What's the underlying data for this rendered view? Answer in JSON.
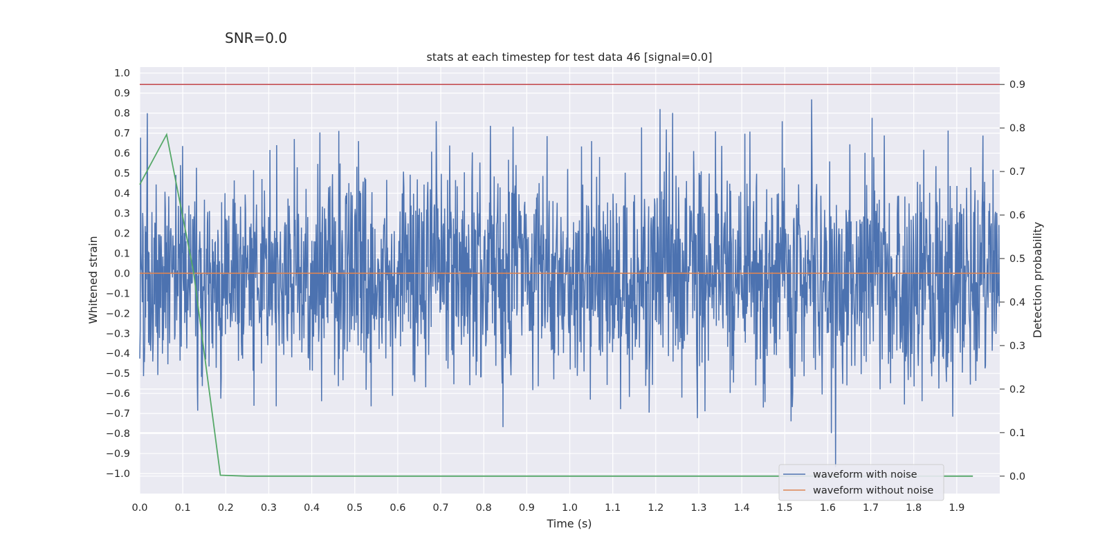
{
  "suptitle": "SNR=0.0",
  "chart_data": {
    "type": "line",
    "title": "stats at each timestep for test data 46 [signal=0.0]",
    "xlabel": "Time (s)",
    "ylabel": "Whitened strain",
    "y2label": "Detection probability",
    "xlim": [
      0.0,
      2.0
    ],
    "ylim": [
      -1.1,
      1.03
    ],
    "y2lim": [
      -0.04,
      0.94
    ],
    "xticks": [
      "0.0",
      "0.1",
      "0.2",
      "0.3",
      "0.4",
      "0.5",
      "0.6",
      "0.7",
      "0.8",
      "0.9",
      "1.0",
      "1.1",
      "1.2",
      "1.3",
      "1.4",
      "1.5",
      "1.6",
      "1.7",
      "1.8",
      "1.9"
    ],
    "yticks": [
      "1.0",
      "0.9",
      "0.8",
      "0.7",
      "0.6",
      "0.5",
      "0.4",
      "0.3",
      "0.2",
      "0.1",
      "0.0",
      "−0.1",
      "−0.2",
      "−0.3",
      "−0.4",
      "−0.5",
      "−0.6",
      "−0.7",
      "−0.8",
      "−0.9",
      "−1.0"
    ],
    "y2ticks": [
      "0.9",
      "0.8",
      "0.7",
      "0.6",
      "0.5",
      "0.4",
      "0.3",
      "0.2",
      "0.1",
      "0.0"
    ],
    "grid": true,
    "legend_position": "lower-right",
    "threshold": {
      "value": 0.9,
      "axis": "right",
      "color": "#c44e52"
    },
    "series": [
      {
        "name": "waveform with noise",
        "axis": "left",
        "color": "#4c72b0",
        "note_samples": "approximate noise trace; 2048 samples over 0–2 s, range about −1.0 to 0.93",
        "sample_count": 2048,
        "amplitude_range": [
          -1.0,
          0.93
        ]
      },
      {
        "name": "waveform without noise",
        "axis": "left",
        "color": "#dd8452",
        "x": [
          0.0,
          2.0
        ],
        "y": [
          0.0,
          0.0
        ]
      },
      {
        "name": "",
        "axis": "right",
        "color": "#55a868",
        "x": [
          0.0,
          0.0625,
          0.125,
          0.1875,
          0.25,
          0.3125,
          0.5,
          0.75,
          1.0,
          1.25,
          1.5,
          1.75,
          1.9375
        ],
        "y": [
          0.67,
          0.785,
          0.47,
          0.002,
          0.0,
          0.0,
          0.0,
          0.0,
          0.0,
          0.0,
          0.0,
          0.0,
          0.0
        ]
      }
    ]
  }
}
